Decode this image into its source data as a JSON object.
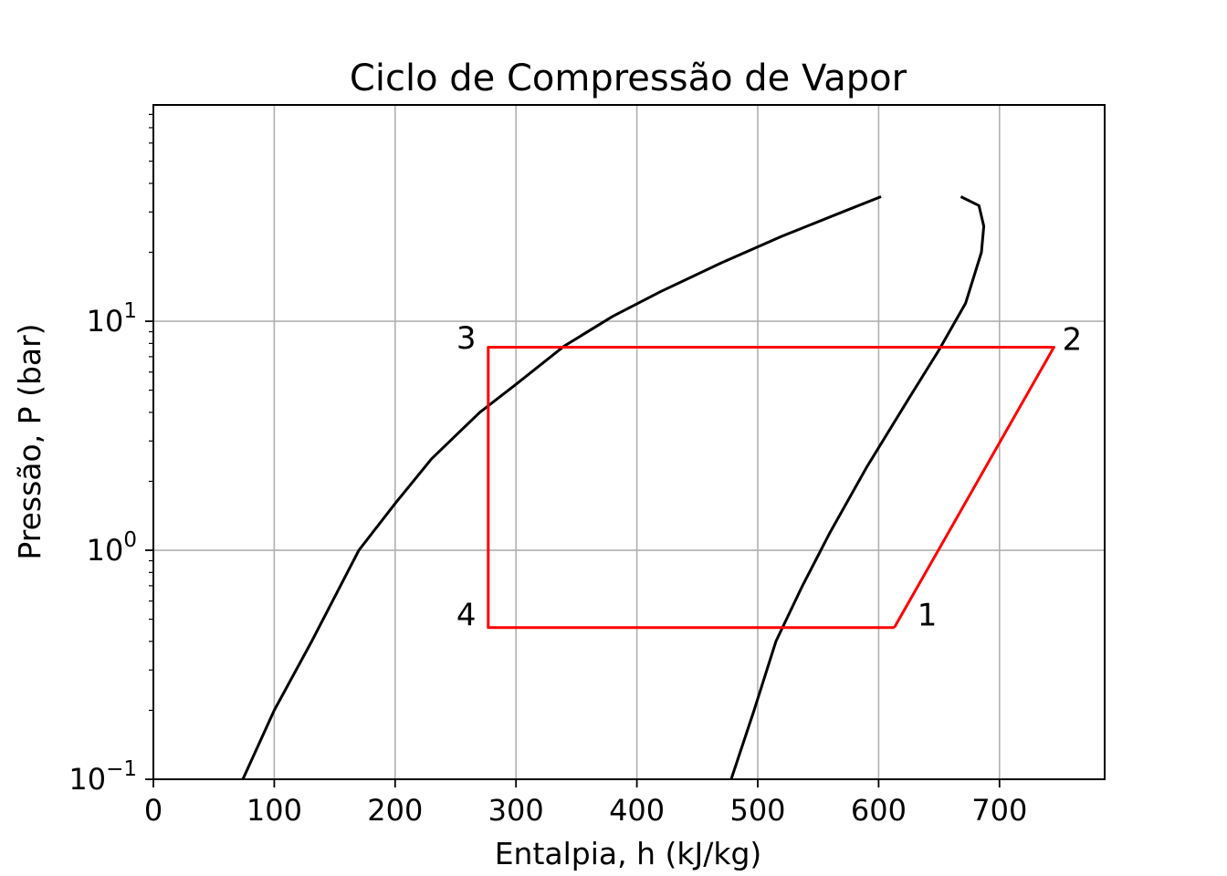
{
  "chart_data": {
    "type": "line",
    "title": "Ciclo de Compressão de Vapor",
    "xlabel": "Entalpia, h (kJ/kg)",
    "ylabel": "Pressão, P (bar)",
    "xscale": "linear",
    "yscale": "log",
    "xlim": [
      0,
      787
    ],
    "ylim": [
      0.1,
      88
    ],
    "grid": true,
    "xticks": [
      0,
      100,
      200,
      300,
      400,
      500,
      600,
      700
    ],
    "xtick_labels": [
      "0",
      "100",
      "200",
      "300",
      "400",
      "500",
      "600",
      "700"
    ],
    "yticks": [
      0.1,
      1,
      10
    ],
    "ytick_labels": [
      {
        "base": "10",
        "exp": "−1"
      },
      {
        "base": "10",
        "exp": "0"
      },
      {
        "base": "10",
        "exp": "1"
      }
    ],
    "series": [
      {
        "color": "#000000",
        "points": [
          [
            74,
            0.1
          ],
          [
            100,
            0.2
          ],
          [
            131,
            0.4
          ],
          [
            170,
            1.0
          ],
          [
            200,
            1.6
          ],
          [
            230,
            2.5
          ],
          [
            270,
            4.0
          ],
          [
            300,
            5.3
          ],
          [
            340,
            7.8
          ],
          [
            380,
            10.5
          ],
          [
            420,
            13.5
          ],
          [
            470,
            18.0
          ],
          [
            520,
            23.5
          ],
          [
            570,
            30.0
          ],
          [
            602,
            35.0
          ]
        ]
      },
      {
        "color": "#000000",
        "points": [
          [
            478,
            0.1
          ],
          [
            497,
            0.2
          ],
          [
            515,
            0.4
          ],
          [
            537,
            0.7
          ],
          [
            560,
            1.2
          ],
          [
            590,
            2.3
          ],
          [
            625,
            4.6
          ],
          [
            650,
            7.5
          ],
          [
            672,
            12.0
          ],
          [
            685,
            20.0
          ],
          [
            687,
            26.0
          ],
          [
            683,
            32.0
          ],
          [
            668,
            35.0
          ]
        ]
      },
      {
        "color": "#ff0000",
        "points": [
          [
            613,
            0.46
          ],
          [
            745,
            7.7
          ],
          [
            277,
            7.7
          ],
          [
            277,
            0.46
          ],
          [
            613,
            0.46
          ]
        ]
      }
    ],
    "annotations": [
      {
        "text": "1",
        "x": 632,
        "y": 0.47
      },
      {
        "text": "2",
        "x": 752,
        "y": 7.5
      },
      {
        "text": "3",
        "x": 267,
        "y": 7.6
      },
      {
        "text": "4",
        "x": 267,
        "y": 0.47
      }
    ],
    "colors": {
      "grid": "#b0b0b0",
      "frame": "#000000"
    }
  }
}
